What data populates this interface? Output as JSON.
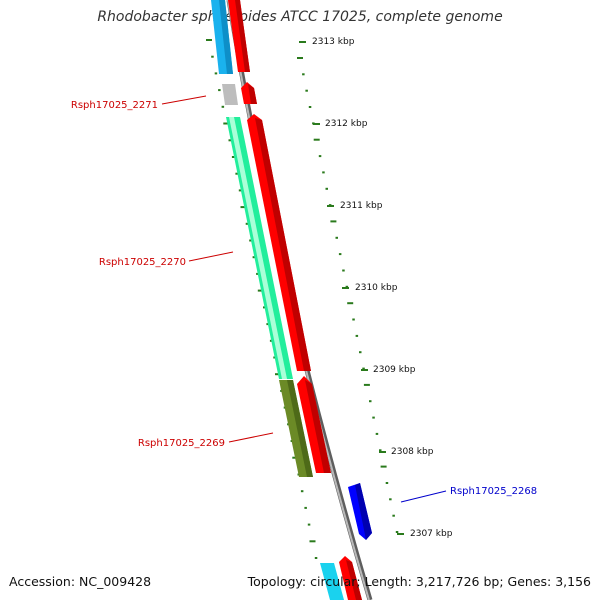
{
  "title": "Rhodobacter sphaeroides ATCC 17025, complete genome",
  "footer": {
    "accession": "Accession: NC_009428",
    "topology": "Topology: circular; Length: 3,217,726 bp; Genes: 3,156"
  },
  "colors": {
    "backbone": "#8c8c8c",
    "gc_ticks": "#2a7a1c",
    "cds_red": "#ff0000",
    "cds_cyan": "#1ab2ee",
    "cds_green": "#22ee9c",
    "cds_olive": "#6b8a26",
    "cds_grey": "#bdbdbd",
    "cds_blue": "#0000ff",
    "label_red": "#cc0000",
    "label_blue": "#0000cc"
  },
  "scale_labels": [
    "2313 kbp",
    "2312 kbp",
    "2311 kbp",
    "2310 kbp",
    "2309 kbp",
    "2308 kbp",
    "2307 kbp"
  ],
  "gene_labels": [
    "Rsph17025_2271",
    "Rsph17025_2270",
    "Rsph17025_2269",
    "Rsph17025_2268"
  ]
}
